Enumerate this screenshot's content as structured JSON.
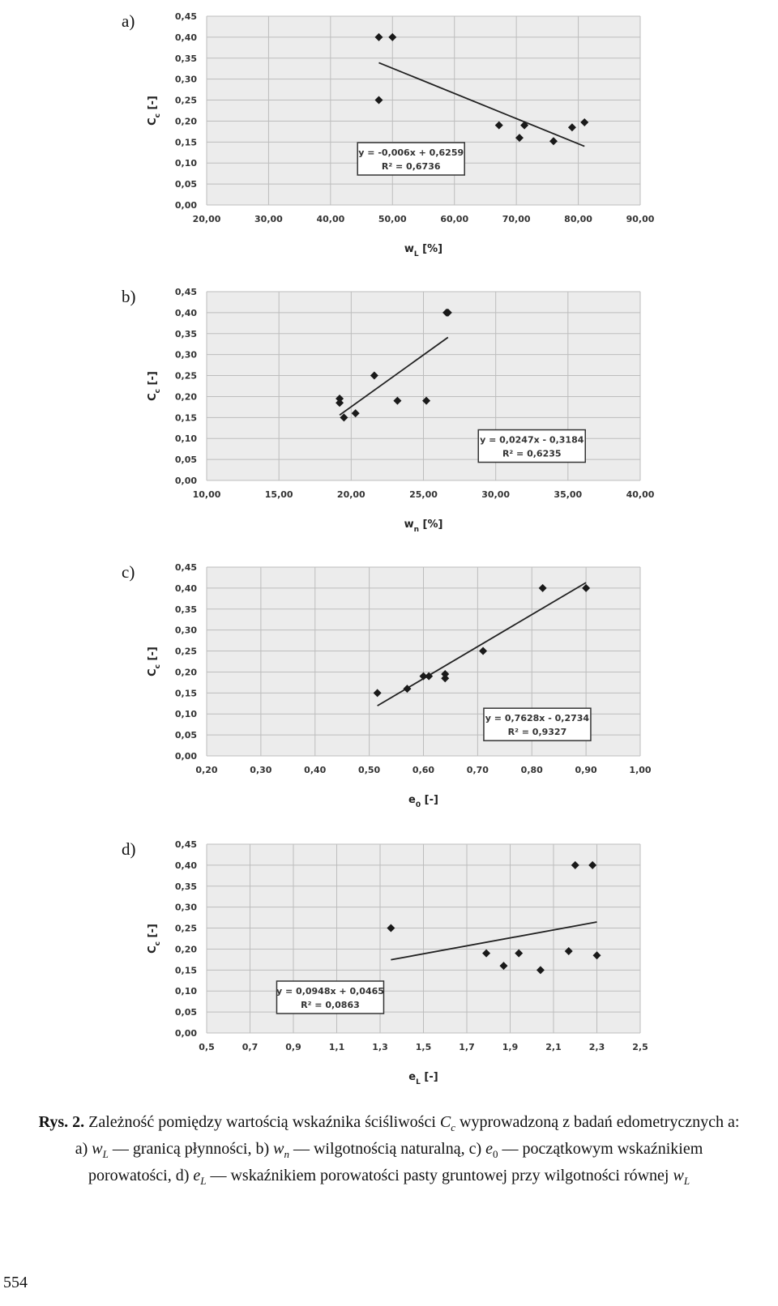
{
  "chart_data": [
    {
      "type": "scatter",
      "label": "a)",
      "xlim": [
        20,
        90
      ],
      "xticks": [
        20,
        30,
        40,
        50,
        60,
        70,
        80,
        90
      ],
      "xtick_labels": [
        "20,00",
        "30,00",
        "40,00",
        "50,00",
        "60,00",
        "70,00",
        "80,00",
        "90,00"
      ],
      "ylim": [
        0,
        0.45
      ],
      "yticks": [
        0,
        0.05,
        0.1,
        0.15,
        0.2,
        0.25,
        0.3,
        0.35,
        0.4,
        0.45
      ],
      "ytick_labels": [
        "0,00",
        "0,05",
        "0,10",
        "0,15",
        "0,20",
        "0,25",
        "0,30",
        "0,35",
        "0,40",
        "0,45"
      ],
      "xlabel": "w",
      "xlabel_sub": "L",
      "xlabel_unit": " [%]",
      "ylabel": "C",
      "ylabel_sub": "c",
      "ylabel_unit": " [-]",
      "points": [
        [
          47.8,
          0.4
        ],
        [
          50.0,
          0.4
        ],
        [
          47.8,
          0.25
        ],
        [
          67.2,
          0.19
        ],
        [
          71.3,
          0.19
        ],
        [
          70.5,
          0.16
        ],
        [
          76.0,
          0.152
        ],
        [
          79.0,
          0.185
        ],
        [
          81.0,
          0.197
        ]
      ],
      "trendline": {
        "slope": -0.006,
        "intercept": 0.6259,
        "x_range": [
          47.8,
          81.0
        ]
      },
      "equation": "y = -0,006x + 0,6259",
      "r2": "R² = 0,6736",
      "equation_anchor": {
        "x": 53,
        "y": 0.11
      }
    },
    {
      "type": "scatter",
      "label": "b)",
      "xlim": [
        10,
        40
      ],
      "xticks": [
        10,
        15,
        20,
        25,
        30,
        35,
        40
      ],
      "xtick_labels": [
        "10,00",
        "15,00",
        "20,00",
        "25,00",
        "30,00",
        "35,00",
        "40,00"
      ],
      "ylim": [
        0,
        0.45
      ],
      "yticks": [
        0,
        0.05,
        0.1,
        0.15,
        0.2,
        0.25,
        0.3,
        0.35,
        0.4,
        0.45
      ],
      "ytick_labels": [
        "0,00",
        "0,05",
        "0,10",
        "0,15",
        "0,20",
        "0,25",
        "0,30",
        "0,35",
        "0,40",
        "0,45"
      ],
      "xlabel": "w",
      "xlabel_sub": "n",
      "xlabel_unit": " [%]",
      "ylabel": "C",
      "ylabel_sub": "c",
      "ylabel_unit": " [-]",
      "points": [
        [
          19.2,
          0.195
        ],
        [
          19.2,
          0.185
        ],
        [
          19.5,
          0.15
        ],
        [
          20.3,
          0.16
        ],
        [
          21.6,
          0.25
        ],
        [
          23.2,
          0.19
        ],
        [
          25.2,
          0.19
        ],
        [
          26.6,
          0.4
        ],
        [
          26.7,
          0.4
        ]
      ],
      "trendline": {
        "slope": 0.0247,
        "intercept": -0.3184,
        "x_range": [
          19.2,
          26.7
        ]
      },
      "equation": "y = 0,0247x - 0,3184",
      "r2": "R² = 0,6235",
      "equation_anchor": {
        "x": 32.5,
        "y": 0.082
      }
    },
    {
      "type": "scatter",
      "label": "c)",
      "xlim": [
        0.2,
        1.0
      ],
      "xticks": [
        0.2,
        0.3,
        0.4,
        0.5,
        0.6,
        0.7,
        0.8,
        0.9,
        1.0
      ],
      "xtick_labels": [
        "0,20",
        "0,30",
        "0,40",
        "0,50",
        "0,60",
        "0,70",
        "0,80",
        "0,90",
        "1,00"
      ],
      "ylim": [
        0,
        0.45
      ],
      "yticks": [
        0,
        0.05,
        0.1,
        0.15,
        0.2,
        0.25,
        0.3,
        0.35,
        0.4,
        0.45
      ],
      "ytick_labels": [
        "0,00",
        "0,05",
        "0,10",
        "0,15",
        "0,20",
        "0,25",
        "0,30",
        "0,35",
        "0,40",
        "0,45"
      ],
      "xlabel": "e",
      "xlabel_sub": "0",
      "xlabel_unit": " [-]",
      "ylabel": "C",
      "ylabel_sub": "c",
      "ylabel_unit": " [-]",
      "points": [
        [
          0.515,
          0.15
        ],
        [
          0.57,
          0.16
        ],
        [
          0.6,
          0.19
        ],
        [
          0.61,
          0.19
        ],
        [
          0.64,
          0.195
        ],
        [
          0.64,
          0.185
        ],
        [
          0.71,
          0.25
        ],
        [
          0.82,
          0.4
        ],
        [
          0.9,
          0.4
        ]
      ],
      "trendline": {
        "slope": 0.7628,
        "intercept": -0.2734,
        "x_range": [
          0.515,
          0.9
        ]
      },
      "equation": "y = 0,7628x - 0,2734",
      "r2": "R² = 0,9327",
      "equation_anchor": {
        "x": 0.81,
        "y": 0.075
      }
    },
    {
      "type": "scatter",
      "label": "d)",
      "xlim": [
        0.5,
        2.5
      ],
      "xticks": [
        0.5,
        0.7,
        0.9,
        1.1,
        1.3,
        1.5,
        1.7,
        1.9,
        2.1,
        2.3,
        2.5
      ],
      "xtick_labels": [
        "0,5",
        "0,7",
        "0,9",
        "1,1",
        "1,3",
        "1,5",
        "1,7",
        "1,9",
        "2,1",
        "2,3",
        "2,5"
      ],
      "ylim": [
        0,
        0.45
      ],
      "yticks": [
        0,
        0.05,
        0.1,
        0.15,
        0.2,
        0.25,
        0.3,
        0.35,
        0.4,
        0.45
      ],
      "ytick_labels": [
        "0,00",
        "0,05",
        "0,10",
        "0,15",
        "0,20",
        "0,25",
        "0,30",
        "0,35",
        "0,40",
        "0,45"
      ],
      "xlabel": "e",
      "xlabel_sub": "L",
      "xlabel_unit": " [-]",
      "ylabel": "C",
      "ylabel_sub": "c",
      "ylabel_unit": " [-]",
      "points": [
        [
          1.35,
          0.25
        ],
        [
          1.79,
          0.19
        ],
        [
          1.87,
          0.16
        ],
        [
          1.94,
          0.19
        ],
        [
          2.04,
          0.15
        ],
        [
          2.17,
          0.195
        ],
        [
          2.2,
          0.4
        ],
        [
          2.28,
          0.4
        ],
        [
          2.3,
          0.185
        ]
      ],
      "trendline": {
        "slope": 0.0948,
        "intercept": 0.0465,
        "x_range": [
          1.35,
          2.3
        ]
      },
      "equation": "y = 0,0948x + 0,0465",
      "r2": "R² = 0,0863",
      "equation_anchor": {
        "x": 1.07,
        "y": 0.085
      }
    }
  ],
  "caption": {
    "fig_label": "Rys. 2.",
    "t1": " Zależność pomiędzy wartością wskaźnika ściśliwości ",
    "v1": "C",
    "s1": "c",
    "t2": " wyprowadzoną z badań edometrycznych a: a) ",
    "v2": "w",
    "s2": "L",
    "t3": " — granicą płynności, b) ",
    "v3": "w",
    "s3": "n",
    "t4": " — wilgotnością naturalną, c) ",
    "v4": "e",
    "s4": "0",
    "t5": " — początkowym wskaźnikiem porowatości, d) ",
    "v5": "e",
    "s5": "L",
    "t6": " — wskaźnikiem porowatości pasty gruntowej przy wilgotności równej ",
    "v6": "w",
    "s6": "L"
  },
  "page_number": "554"
}
